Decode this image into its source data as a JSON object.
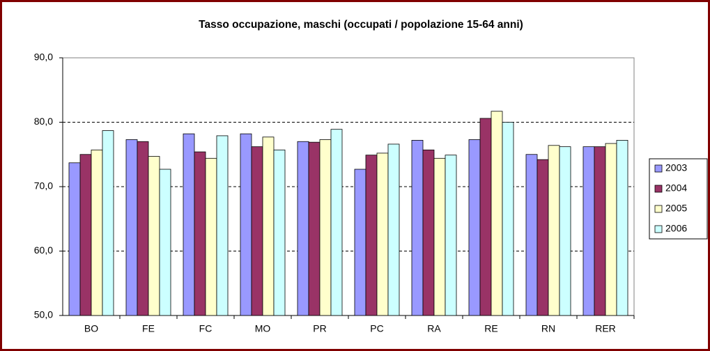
{
  "chart_data": {
    "type": "bar",
    "title": "Tasso occupazione, maschi (occupati / popolazione 15-64 anni)",
    "categories": [
      "BO",
      "FE",
      "FC",
      "MO",
      "PR",
      "PC",
      "RA",
      "RE",
      "RN",
      "RER"
    ],
    "series": [
      {
        "name": "2003",
        "color": "#9999ff",
        "values": [
          73.7,
          77.3,
          78.2,
          78.2,
          77.0,
          72.7,
          77.2,
          77.3,
          75.0,
          76.2
        ]
      },
      {
        "name": "2004",
        "color": "#993366",
        "values": [
          75.0,
          77.0,
          75.4,
          76.2,
          76.9,
          74.9,
          75.7,
          80.6,
          74.2,
          76.2
        ]
      },
      {
        "name": "2005",
        "color": "#ffffcc",
        "values": [
          75.7,
          74.7,
          74.4,
          77.7,
          77.3,
          75.2,
          74.4,
          81.7,
          76.4,
          76.7
        ]
      },
      {
        "name": "2006",
        "color": "#ccffff",
        "values": [
          78.7,
          72.7,
          77.9,
          75.7,
          78.9,
          76.6,
          74.9,
          80.0,
          76.2,
          77.2
        ]
      }
    ],
    "ylim": [
      50,
      90
    ],
    "yticks": [
      {
        "value": 50,
        "label": "50,0"
      },
      {
        "value": 60,
        "label": "60,0"
      },
      {
        "value": 70,
        "label": "70,0"
      },
      {
        "value": 80,
        "label": "80,0"
      },
      {
        "value": 90,
        "label": "90,0"
      }
    ],
    "grid": true,
    "legend": "right"
  }
}
